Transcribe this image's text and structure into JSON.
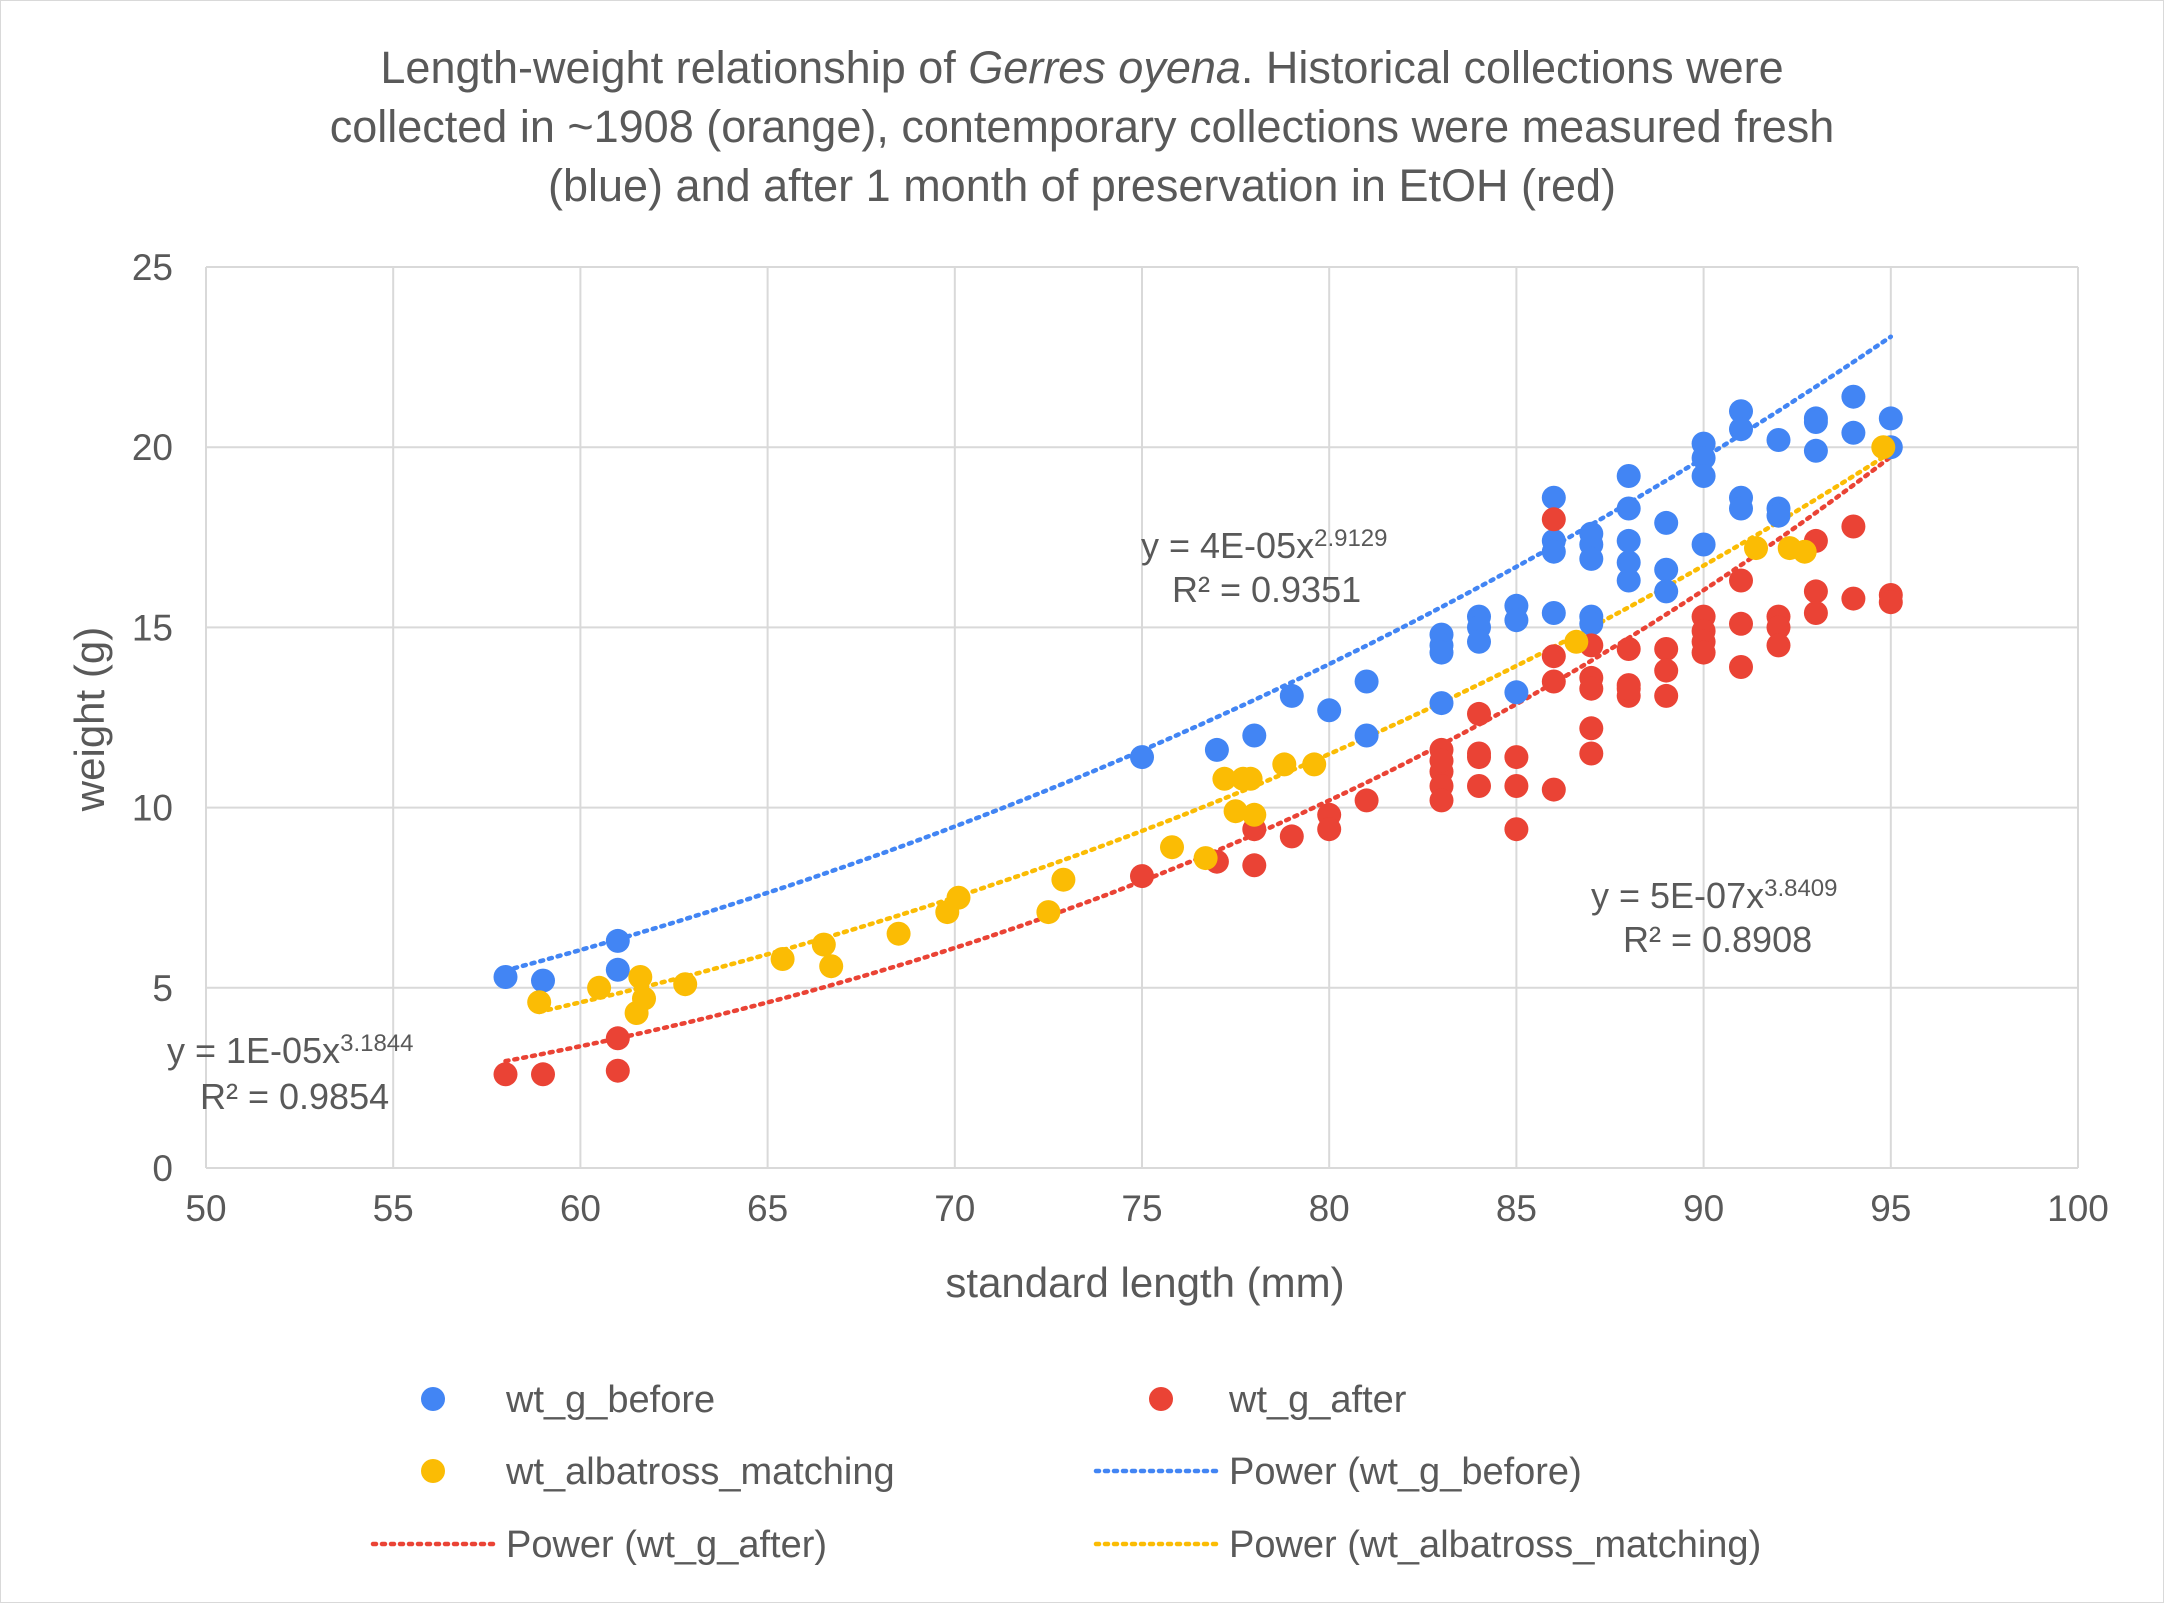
{
  "chart_data": {
    "type": "scatter",
    "title_lines": [
      [
        "Length-weight relationship of ",
        "Gerres oyena",
        ". Historical collections were"
      ],
      [
        "collected in ~1908 (orange), contemporary collections were measured fresh"
      ],
      [
        "(blue) and after 1 month of preservation in EtOH (red)"
      ]
    ],
    "xlabel": "standard length (mm)",
    "ylabel": "weight (g)",
    "xlim": [
      50,
      100
    ],
    "ylim": [
      0,
      25
    ],
    "x_ticks": [
      50,
      55,
      60,
      65,
      70,
      75,
      80,
      85,
      90,
      95,
      100
    ],
    "y_ticks": [
      0,
      5,
      10,
      15,
      20,
      25
    ],
    "grid": true,
    "legend_position": "bottom",
    "series": [
      {
        "name": "wt_g_before",
        "color": "#4285f4",
        "marker": "circle",
        "x": [
          58,
          59,
          61,
          61,
          75,
          77,
          78,
          79,
          80,
          81,
          81,
          83,
          83,
          83,
          83,
          84,
          84,
          84,
          85,
          85,
          85,
          86,
          86,
          86,
          86,
          87,
          87,
          87,
          87,
          87,
          88,
          88,
          88,
          88,
          88,
          89,
          89,
          89,
          90,
          90,
          90,
          90,
          91,
          91,
          91,
          91,
          92,
          92,
          92,
          93,
          93,
          93,
          94,
          94,
          95,
          95
        ],
        "y": [
          5.3,
          5.2,
          6.3,
          5.5,
          11.4,
          11.6,
          12.0,
          13.1,
          12.7,
          13.5,
          12.0,
          14.8,
          14.5,
          14.3,
          12.9,
          15.3,
          15.0,
          14.6,
          15.6,
          15.2,
          13.2,
          18.6,
          17.4,
          17.1,
          15.4,
          17.6,
          17.3,
          16.9,
          15.3,
          15.1,
          19.2,
          18.3,
          17.4,
          16.8,
          16.3,
          17.9,
          16.6,
          16.0,
          20.1,
          19.7,
          19.2,
          17.3,
          21.0,
          20.5,
          18.6,
          18.3,
          20.2,
          18.3,
          18.1,
          20.8,
          20.7,
          19.9,
          21.4,
          20.4,
          20.8,
          20.0
        ]
      },
      {
        "name": "wt_g_after",
        "color": "#ea4335",
        "marker": "circle",
        "x": [
          58,
          59,
          61,
          61,
          75,
          77,
          78,
          78,
          79,
          80,
          80,
          81,
          83,
          83,
          83,
          83,
          83,
          84,
          84,
          84,
          84,
          85,
          85,
          85,
          86,
          86,
          86,
          86,
          87,
          87,
          87,
          87,
          87,
          88,
          88,
          88,
          88,
          89,
          89,
          89,
          90,
          90,
          90,
          90,
          91,
          91,
          91,
          92,
          92,
          92,
          93,
          93,
          93,
          94,
          94,
          95,
          95
        ],
        "y": [
          2.6,
          2.6,
          3.6,
          2.7,
          8.1,
          8.5,
          9.4,
          8.4,
          9.2,
          9.8,
          9.4,
          10.2,
          11.6,
          11.0,
          10.6,
          10.2,
          11.3,
          12.6,
          11.4,
          11.5,
          10.6,
          11.4,
          10.6,
          9.4,
          18.0,
          14.2,
          13.5,
          10.5,
          14.5,
          13.6,
          13.3,
          12.2,
          11.5,
          14.4,
          13.4,
          13.1,
          13.3,
          14.4,
          13.8,
          13.1,
          15.3,
          14.9,
          14.6,
          14.3,
          16.3,
          15.1,
          13.9,
          15.3,
          15.0,
          14.5,
          17.4,
          16.0,
          15.4,
          17.8,
          15.8,
          15.9,
          15.7
        ]
      },
      {
        "name": "wt_albatross_matching",
        "color": "#fbbc04",
        "marker": "circle",
        "x": [
          58.9,
          60.5,
          61.5,
          61.6,
          61.7,
          62.8,
          65.4,
          66.5,
          66.7,
          68.5,
          69.8,
          70.1,
          72.5,
          72.9,
          75.8,
          76.7,
          77.2,
          77.5,
          77.7,
          77.9,
          78.0,
          78.8,
          79.6,
          86.6,
          91.4,
          92.3,
          92.7,
          94.8
        ],
        "y": [
          4.6,
          5.0,
          4.3,
          5.3,
          4.7,
          5.1,
          5.8,
          6.2,
          5.6,
          6.5,
          7.1,
          7.5,
          7.1,
          8.0,
          8.9,
          8.6,
          10.8,
          9.9,
          10.8,
          10.8,
          9.8,
          11.2,
          11.2,
          14.6,
          17.2,
          17.2,
          17.1,
          20.0
        ]
      },
      {
        "name": "Power (wt_g_before)",
        "color": "#4285f4",
        "line_style": "dotted",
        "trendline": {
          "type": "power",
          "a": 4e-05,
          "b": 2.9129,
          "x_range": [
            58,
            95
          ]
        }
      },
      {
        "name": "Power (wt_g_after)",
        "color": "#ea4335",
        "line_style": "dotted",
        "trendline": {
          "type": "power",
          "a": 5e-07,
          "b": 3.8409,
          "x_range": [
            58,
            95
          ]
        }
      },
      {
        "name": "Power (wt_albatross_matching)",
        "color": "#fbbc04",
        "line_style": "dotted",
        "trendline": {
          "type": "power",
          "a": 1e-05,
          "b": 3.1844,
          "x_range": [
            58.9,
            94.8
          ]
        }
      }
    ],
    "annotations": [
      {
        "series": "wt_g_before",
        "eq_base": "y = 4E-05x",
        "eq_exp": "2.9129",
        "r2": "R² = 0.9351"
      },
      {
        "series": "wt_g_after",
        "eq_base": "y = 5E-07x",
        "eq_exp": "3.8409",
        "r2": "R² = 0.8908"
      },
      {
        "series": "wt_albatross_matching",
        "eq_base": "y = 1E-05x",
        "eq_exp": "3.1844",
        "r2": "R² = 0.9854"
      }
    ],
    "legend": [
      {
        "label": "wt_g_before",
        "kind": "marker",
        "color": "#4285f4"
      },
      {
        "label": "wt_g_after",
        "kind": "marker",
        "color": "#ea4335"
      },
      {
        "label": "wt_albatross_matching",
        "kind": "marker",
        "color": "#fbbc04"
      },
      {
        "label": "Power (wt_g_before)",
        "kind": "line",
        "color": "#4285f4"
      },
      {
        "label": "Power (wt_g_after)",
        "kind": "line",
        "color": "#ea4335"
      },
      {
        "label": "Power (wt_albatross_matching)",
        "kind": "line",
        "color": "#fbbc04"
      }
    ],
    "colors": {
      "grid": "#d9d9d9",
      "text": "#595959",
      "border": "#d9d9d9"
    }
  }
}
